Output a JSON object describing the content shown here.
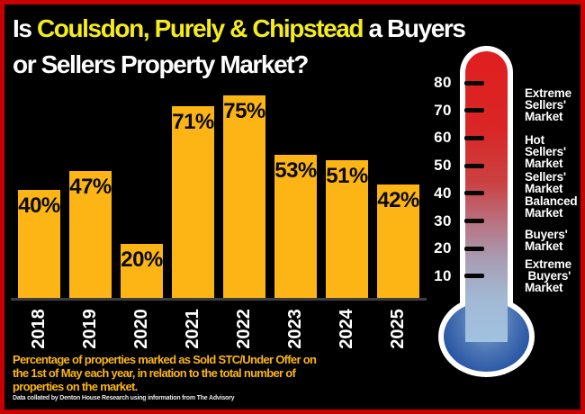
{
  "title": {
    "prefix": "Is ",
    "highlight": "Coulsdon, Purely & Chipstead",
    "suffix": " a Buyers",
    "line2": "or Sellers Property Market?"
  },
  "colors": {
    "background": "#000000",
    "frame_red": "#c90000",
    "bar_gold": "#fcb514",
    "title_yellow": "#f5ec1c",
    "axis_gray": "#3e3e3e",
    "thermometer_top_red": "#e11f1f",
    "thermometer_bulb_blue": "#1d4c9b"
  },
  "chart_data": {
    "type": "bar",
    "categories": [
      "2018",
      "2019",
      "2020",
      "2021",
      "2022",
      "2023",
      "2024",
      "2025"
    ],
    "values": [
      40,
      47,
      20,
      71,
      75,
      53,
      51,
      42
    ],
    "bar_labels": [
      "40%",
      "47%",
      "20%",
      "71%",
      "75%",
      "53%",
      "51%",
      "42%"
    ],
    "unit": "%",
    "title": "Is Coulsdon, Purely & Chipstead a Buyers or Sellers Property Market?",
    "xlabel": "",
    "ylabel": "",
    "ylim": [
      0,
      100
    ],
    "grid": false,
    "legend": false,
    "bar_color": "#fcb514"
  },
  "thermometer": {
    "scale_ticks": [
      80,
      70,
      60,
      50,
      40,
      30,
      20,
      10
    ],
    "zones": [
      {
        "lines": [
          "Extreme",
          "Sellers'",
          "Market"
        ],
        "position_value": 72
      },
      {
        "lines": [
          "Hot",
          "Sellers'",
          "Market"
        ],
        "position_value": 55
      },
      {
        "lines": [
          "Sellers'",
          "Market"
        ],
        "position_value": 44
      },
      {
        "lines": [
          "Balanced",
          "Market"
        ],
        "position_value": 35
      },
      {
        "lines": [
          "Buyers'",
          "Market"
        ],
        "position_value": 23
      },
      {
        "lines": [
          "Extreme",
          " Buyers'",
          "Market"
        ],
        "position_value": 10
      }
    ]
  },
  "footer": {
    "lines": [
      "Percentage of properties marked as Sold STC/Under Offer on",
      "the 1st of May each year, in relation to the total number of",
      "properties on the market."
    ],
    "credit": "Data collated by Denton House Research using information from The Advisory"
  }
}
